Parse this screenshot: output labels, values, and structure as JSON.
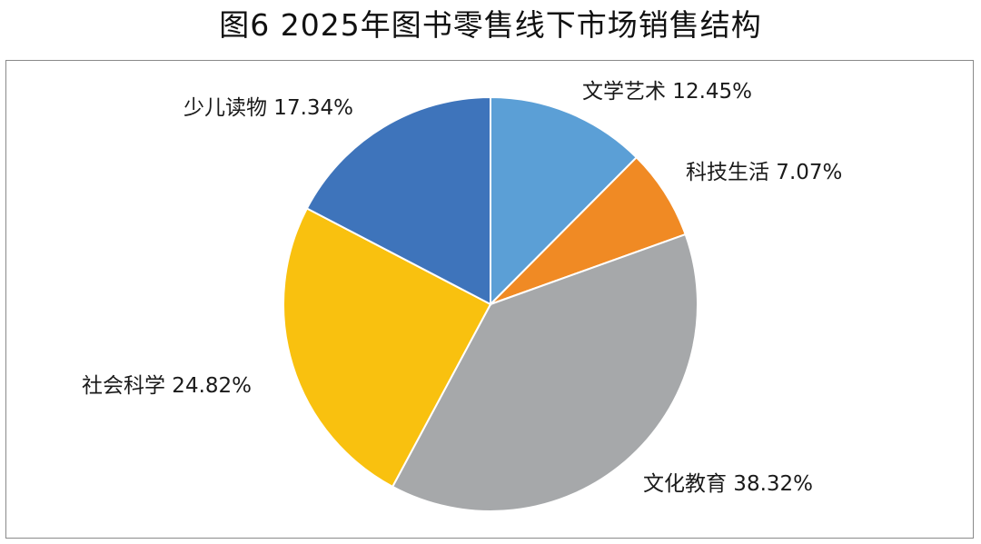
{
  "title": "图6  2025年图书零售线下市场销售结构",
  "chart_data": {
    "type": "pie",
    "title": "图6  2025年图书零售线下市场销售结构",
    "start": "12 o'clock",
    "direction": "clockwise",
    "slices": [
      {
        "name": "文学艺术",
        "value": 12.45,
        "label": "文学艺术 12.45%",
        "color": "#5b9fd6"
      },
      {
        "name": "科技生活",
        "value": 7.07,
        "label": "科技生活 7.07%",
        "color": "#f08a24"
      },
      {
        "name": "文化教育",
        "value": 38.32,
        "label": "文化教育 38.32%",
        "color": "#a6a8aa"
      },
      {
        "name": "社会科学",
        "value": 24.82,
        "label": "社会科学 24.82%",
        "color": "#f9c10f"
      },
      {
        "name": "少儿读物",
        "value": 17.34,
        "label": "少儿读物 17.34%",
        "color": "#3e74bb"
      }
    ],
    "legend": "none (labels beside slices)"
  }
}
